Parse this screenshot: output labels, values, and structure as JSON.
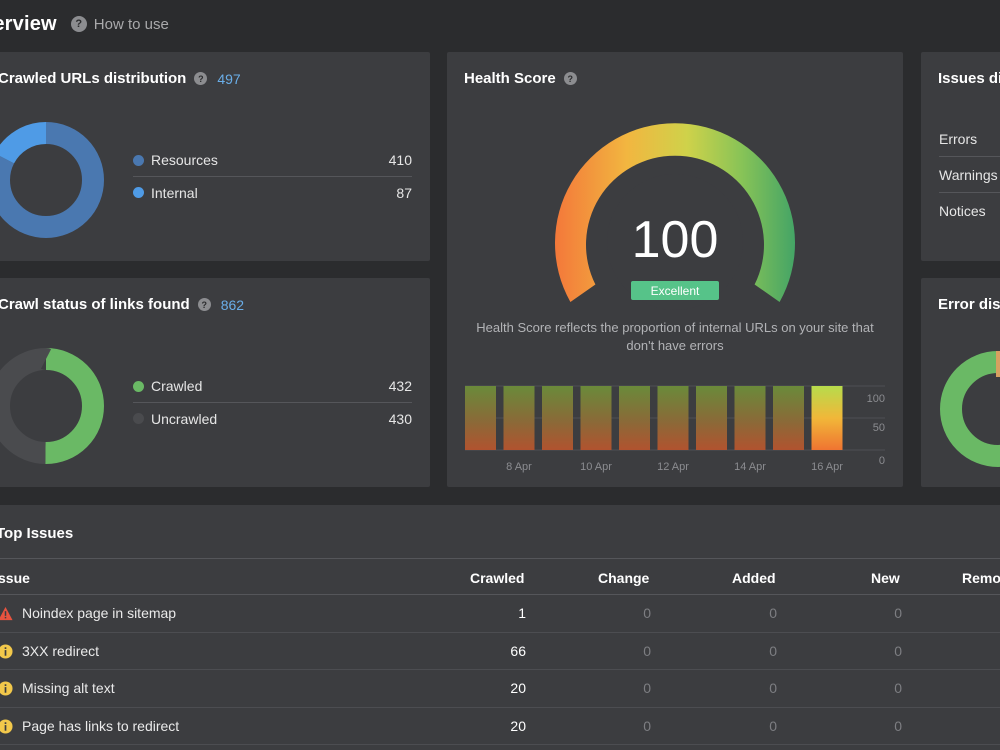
{
  "header": {
    "title": "verview",
    "how_to": "How to use"
  },
  "crawled_urls": {
    "title": "Crawled URLs distribution",
    "count": "497",
    "items": [
      {
        "label": "Resources",
        "value": 410,
        "color": "#4a78b0"
      },
      {
        "label": "Internal",
        "value": 87,
        "color": "#4f9be6"
      }
    ]
  },
  "crawl_status": {
    "title": "Crawl status of links found",
    "count": "862",
    "items": [
      {
        "label": "Crawled",
        "value": 432,
        "color": "#6ab965"
      },
      {
        "label": "Uncrawled",
        "value": 430,
        "color": "#4a4b4e"
      }
    ]
  },
  "health": {
    "title": "Health Score",
    "score": "100",
    "badge": "Excellent",
    "description": "Health Score reflects the proportion of internal URLs on your site that don't have errors",
    "history": {
      "y_ticks": [
        "100",
        "50",
        "0"
      ],
      "x_labels": [
        "8 Apr",
        "10 Apr",
        "12 Apr",
        "14 Apr",
        "16 Apr"
      ],
      "values": [
        100,
        100,
        100,
        100,
        100,
        100,
        100,
        100,
        100,
        100
      ],
      "highlight_index": 9
    }
  },
  "issues_dist": {
    "title": "Issues di",
    "rows": [
      "Errors",
      "Warnings",
      "Notices"
    ]
  },
  "error_dist": {
    "title": "Error dis"
  },
  "top_issues": {
    "title": "Top Issues",
    "columns": [
      "ssue",
      "Crawled",
      "Change",
      "Added",
      "New",
      "Remo"
    ],
    "rows": [
      {
        "icon": "warning",
        "issue": "Noindex page in sitemap",
        "crawled": "1",
        "change": "0",
        "added": "0",
        "new": "0"
      },
      {
        "icon": "info",
        "issue": "3XX redirect",
        "crawled": "66",
        "change": "0",
        "added": "0",
        "new": "0"
      },
      {
        "icon": "info",
        "issue": "Missing alt text",
        "crawled": "20",
        "change": "0",
        "added": "0",
        "new": "0"
      },
      {
        "icon": "info",
        "issue": "Page has links to redirect",
        "crawled": "20",
        "change": "0",
        "added": "0",
        "new": "0"
      }
    ]
  }
}
